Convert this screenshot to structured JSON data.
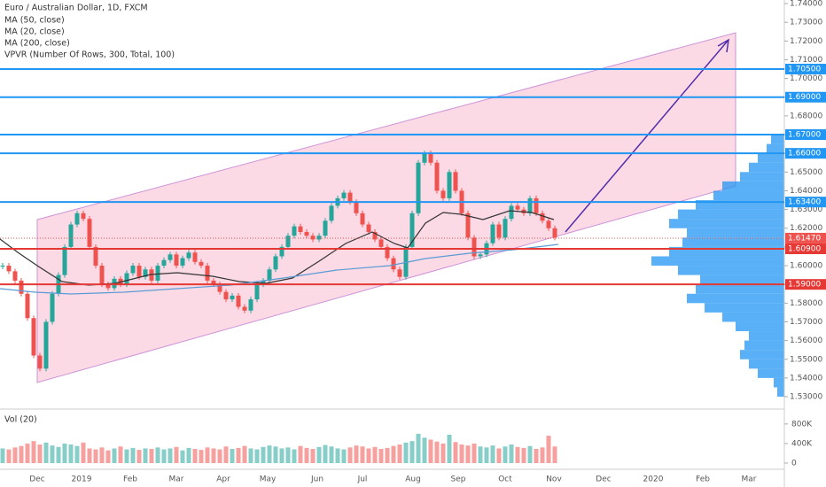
{
  "chart_data": {
    "type": "candlestick",
    "title": "Euro / Australian Dollar, 1D, FXCM",
    "indicators": [
      "MA (50, close)",
      "MA (20, close)",
      "MA (200, close)",
      "VPVR (Number Of Rows, 300, Total, 100)"
    ],
    "volume_title": "Vol (20)",
    "close": [
      1.6,
      1.597,
      1.592,
      1.585,
      1.572,
      1.552,
      1.545,
      1.57,
      1.585,
      1.595,
      1.61,
      1.622,
      1.628,
      1.625,
      1.61,
      1.6,
      1.59,
      1.588,
      1.593,
      1.59,
      1.596,
      1.6,
      1.594,
      1.598,
      1.592,
      1.6,
      1.603,
      1.606,
      1.6,
      1.604,
      1.607,
      1.602,
      1.6,
      1.592,
      1.59,
      1.586,
      1.582,
      1.584,
      1.578,
      1.576,
      1.582,
      1.59,
      1.592,
      1.598,
      1.605,
      1.61,
      1.616,
      1.621,
      1.618,
      1.616,
      1.614,
      1.616,
      1.624,
      1.632,
      1.636,
      1.639,
      1.634,
      1.628,
      1.622,
      1.618,
      1.614,
      1.61,
      1.604,
      1.598,
      1.594,
      1.61,
      1.628,
      1.655,
      1.66,
      1.655,
      1.64,
      1.636,
      1.65,
      1.64,
      1.628,
      1.615,
      1.605,
      1.606,
      1.612,
      1.622,
      1.615,
      1.625,
      1.632,
      1.63,
      1.628,
      1.636,
      1.628,
      1.624,
      1.62,
      1.615
    ],
    "volume": [
      300,
      280,
      320,
      350,
      400,
      450,
      380,
      420,
      360,
      330,
      400,
      380,
      350,
      420,
      300,
      280,
      320,
      260,
      300,
      340,
      280,
      310,
      270,
      300,
      290,
      320,
      280,
      300,
      330,
      260,
      310,
      290,
      270,
      320,
      300,
      280,
      340,
      290,
      310,
      350,
      300,
      280,
      330,
      360,
      340,
      300,
      320,
      280,
      350,
      310,
      290,
      330,
      370,
      340,
      300,
      280,
      320,
      360,
      340,
      300,
      330,
      290,
      310,
      350,
      380,
      420,
      450,
      600,
      520,
      480,
      440,
      400,
      580,
      430,
      380,
      360,
      400,
      340,
      320,
      360,
      300,
      340,
      380,
      330,
      310,
      350,
      290,
      320,
      560,
      340
    ],
    "volume_ylim": [
      0,
      960
    ],
    "volume_ticks": [
      {
        "value": 800,
        "label": "800K"
      },
      {
        "value": 400,
        "label": "400K"
      },
      0
    ],
    "profile_bins": [
      1.53,
      1.535,
      1.54,
      1.545,
      1.55,
      1.555,
      1.56,
      1.565,
      1.57,
      1.575,
      1.58,
      1.585,
      1.59,
      1.595,
      1.6,
      1.605,
      1.61,
      1.615,
      1.62,
      1.625,
      1.63,
      1.635,
      1.64,
      1.645,
      1.65,
      1.655,
      1.66,
      1.665,
      1.67
    ],
    "profile": [
      8,
      12,
      30,
      40,
      50,
      45,
      40,
      55,
      70,
      90,
      110,
      100,
      95,
      120,
      150,
      130,
      115,
      110,
      130,
      120,
      100,
      80,
      70,
      50,
      40,
      30,
      20,
      15
    ],
    "ylim": [
      1.5234,
      1.7419
    ],
    "yticks": [
      {
        "value": 1.74,
        "label": "1.74000"
      },
      {
        "value": 1.73,
        "label": "1.73000"
      },
      {
        "value": 1.72,
        "label": "1.72000"
      },
      {
        "value": 1.71,
        "label": "1.71000"
      },
      {
        "value": 1.7,
        "label": "1.70000"
      },
      {
        "value": 1.69,
        "label": "1.69000"
      },
      {
        "value": 1.68,
        "label": "1.68000"
      },
      {
        "value": 1.67,
        "label": "1.67000"
      },
      {
        "value": 1.66,
        "label": "1.66000"
      },
      {
        "value": 1.65,
        "label": "1.65000"
      },
      {
        "value": 1.64,
        "label": "1.64000"
      },
      {
        "value": 1.63,
        "label": "1.63000"
      },
      {
        "value": 1.62,
        "label": "1.62000"
      },
      {
        "value": 1.61,
        "label": "1.61000"
      },
      {
        "value": 1.6,
        "label": "1.60000"
      },
      {
        "value": 1.59,
        "label": "1.59000"
      },
      {
        "value": 1.58,
        "label": "1.58000"
      },
      {
        "value": 1.57,
        "label": "1.57000"
      },
      {
        "value": 1.56,
        "label": "1.56000"
      },
      {
        "value": 1.55,
        "label": "1.55000"
      },
      {
        "value": 1.54,
        "label": "1.54000"
      },
      {
        "value": 1.53,
        "label": "1.53000"
      }
    ],
    "levels": [
      {
        "value": 1.705,
        "label": "1.70500",
        "color": "#2196f3"
      },
      {
        "value": 1.69,
        "label": "1.69000",
        "color": "#2196f3"
      },
      {
        "value": 1.67,
        "label": "1.67000",
        "color": "#2196f3"
      },
      {
        "value": 1.66,
        "label": "1.66000",
        "color": "#2196f3"
      },
      {
        "value": 1.634,
        "label": "1.63400",
        "color": "#2196f3"
      },
      {
        "value": 1.6147,
        "label": "1.61470",
        "color": "#ef5350"
      },
      {
        "value": 1.609,
        "label": "1.60900",
        "color": "#e53935"
      },
      {
        "value": 1.59,
        "label": "1.59000",
        "color": "#e53935"
      }
    ],
    "xticks": [
      "Dec",
      "2019",
      "Feb",
      "Mar",
      "Apr",
      "May",
      "Jun",
      "Jul",
      "Aug",
      "Sep",
      "Oct",
      "Nov",
      "Dec",
      "2020",
      "Feb",
      "Mar"
    ],
    "up_color": "#26a69a",
    "down_color": "#ef5350"
  }
}
